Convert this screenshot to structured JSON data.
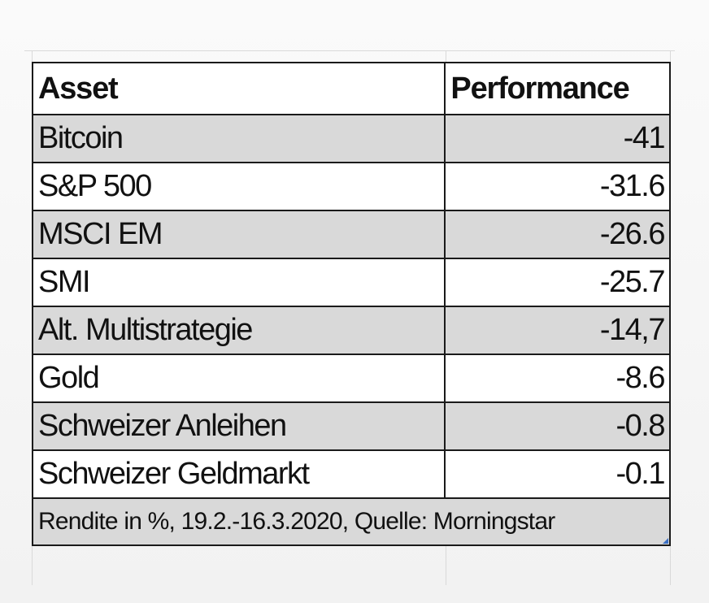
{
  "table": {
    "headers": {
      "asset": "Asset",
      "performance": "Performance"
    },
    "rows": [
      {
        "asset": "Bitcoin",
        "performance": "-41"
      },
      {
        "asset": "S&P 500",
        "performance": "-31.6"
      },
      {
        "asset": "MSCI EM",
        "performance": "-26.6"
      },
      {
        "asset": "SMI",
        "performance": "-25.7"
      },
      {
        "asset": "Alt. Multistrategie",
        "performance": "-14,7"
      },
      {
        "asset": "Gold",
        "performance": "-8.6"
      },
      {
        "asset": "Schweizer Anleihen",
        "performance": "-0.8"
      },
      {
        "asset": "Schweizer Geldmarkt",
        "performance": "-0.1"
      }
    ],
    "footnote": "Rendite in %, 19.2.-16.3.2020, Quelle: Morningstar"
  },
  "colors": {
    "shade": "#d9d9d9",
    "border": "#1a1a1a",
    "corner_mark": "#3a6fc4"
  }
}
